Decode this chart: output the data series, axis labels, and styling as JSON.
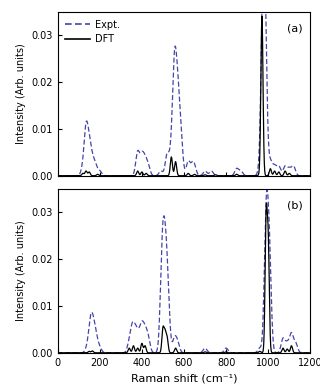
{
  "xlim": [
    0,
    1200
  ],
  "ylim": [
    0,
    0.035
  ],
  "xlabel": "Raman shift (cm⁻¹)",
  "ylabel": "Intensity (Arb. units)",
  "label_a": "(a)",
  "label_b": "(b)",
  "dft_color": "black",
  "expt_color": "#4444aa",
  "dft_lw": 1.0,
  "expt_lw": 1.0,
  "yticks": [
    0.0,
    0.01,
    0.02,
    0.03
  ],
  "panel_a_dft_peaks": [
    [
      120,
      0.0005
    ],
    [
      135,
      0.001
    ],
    [
      150,
      0.0008
    ],
    [
      190,
      0.0003
    ],
    [
      380,
      0.001
    ],
    [
      400,
      0.0008
    ],
    [
      420,
      0.0005
    ],
    [
      540,
      0.004
    ],
    [
      560,
      0.003
    ],
    [
      620,
      0.0005
    ],
    [
      650,
      0.0003
    ],
    [
      700,
      0.0002
    ],
    [
      750,
      0.0002
    ],
    [
      850,
      0.0003
    ],
    [
      960,
      0.0003
    ],
    [
      970,
      0.034
    ],
    [
      1010,
      0.0015
    ],
    [
      1030,
      0.001
    ],
    [
      1050,
      0.0008
    ],
    [
      1080,
      0.001
    ],
    [
      1100,
      0.0005
    ]
  ],
  "panel_a_expt_peaks": [
    [
      120,
      0.0015
    ],
    [
      135,
      0.0095
    ],
    [
      150,
      0.006
    ],
    [
      165,
      0.003
    ],
    [
      180,
      0.002
    ],
    [
      200,
      0.001
    ],
    [
      380,
      0.005
    ],
    [
      400,
      0.004
    ],
    [
      415,
      0.003
    ],
    [
      430,
      0.002
    ],
    [
      490,
      0.001
    ],
    [
      520,
      0.0045
    ],
    [
      540,
      0.0045
    ],
    [
      555,
      0.022
    ],
    [
      570,
      0.015
    ],
    [
      585,
      0.008
    ],
    [
      620,
      0.003
    ],
    [
      640,
      0.002
    ],
    [
      650,
      0.0015
    ],
    [
      700,
      0.001
    ],
    [
      730,
      0.001
    ],
    [
      850,
      0.0015
    ],
    [
      870,
      0.001
    ],
    [
      960,
      0.001
    ],
    [
      975,
      0.034
    ],
    [
      985,
      0.025
    ],
    [
      1010,
      0.003
    ],
    [
      1030,
      0.002
    ],
    [
      1050,
      0.002
    ],
    [
      1080,
      0.002
    ],
    [
      1100,
      0.0015
    ],
    [
      1120,
      0.002
    ]
  ],
  "panel_b_dft_peaks": [
    [
      150,
      0.0003
    ],
    [
      165,
      0.0004
    ],
    [
      340,
      0.001
    ],
    [
      360,
      0.0015
    ],
    [
      380,
      0.001
    ],
    [
      400,
      0.002
    ],
    [
      415,
      0.0015
    ],
    [
      500,
      0.005
    ],
    [
      510,
      0.004
    ],
    [
      520,
      0.003
    ],
    [
      560,
      0.001
    ],
    [
      700,
      0.0002
    ],
    [
      800,
      0.0002
    ],
    [
      960,
      0.0003
    ],
    [
      990,
      0.028
    ],
    [
      1000,
      0.022
    ],
    [
      1070,
      0.001
    ],
    [
      1090,
      0.0008
    ],
    [
      1110,
      0.0015
    ]
  ],
  "panel_b_expt_peaks": [
    [
      140,
      0.001
    ],
    [
      155,
      0.005
    ],
    [
      165,
      0.004
    ],
    [
      175,
      0.003
    ],
    [
      185,
      0.002
    ],
    [
      200,
      0.001
    ],
    [
      340,
      0.002
    ],
    [
      355,
      0.005
    ],
    [
      370,
      0.004
    ],
    [
      385,
      0.003
    ],
    [
      400,
      0.005
    ],
    [
      415,
      0.004
    ],
    [
      430,
      0.003
    ],
    [
      495,
      0.015
    ],
    [
      505,
      0.014
    ],
    [
      515,
      0.012
    ],
    [
      525,
      0.008
    ],
    [
      555,
      0.003
    ],
    [
      570,
      0.002
    ],
    [
      700,
      0.001
    ],
    [
      800,
      0.001
    ],
    [
      960,
      0.001
    ],
    [
      990,
      0.028
    ],
    [
      1005,
      0.02
    ],
    [
      1070,
      0.003
    ],
    [
      1090,
      0.002
    ],
    [
      1110,
      0.004
    ],
    [
      1130,
      0.002
    ]
  ]
}
